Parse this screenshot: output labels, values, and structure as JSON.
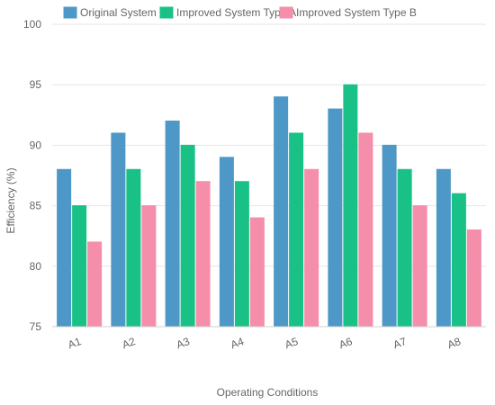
{
  "chart_data": {
    "type": "bar",
    "title": "",
    "xlabel": "Operating Conditions",
    "ylabel": "Efficiency (%)",
    "ylim": [
      75,
      100
    ],
    "yticks": [
      75,
      80,
      85,
      90,
      95,
      100
    ],
    "grid": true,
    "legend_position": "top",
    "categories": [
      "A1",
      "A2",
      "A3",
      "A4",
      "A5",
      "A6",
      "A7",
      "A8"
    ],
    "series": [
      {
        "name": "Original System",
        "color": "#4d98c6",
        "values": [
          88,
          91,
          92,
          89,
          94,
          93,
          90,
          88
        ]
      },
      {
        "name": "Improved System Type A",
        "color": "#19c186",
        "values": [
          85,
          88,
          90,
          87,
          91,
          95,
          88,
          86
        ]
      },
      {
        "name": "Improved System Type B",
        "color": "#f58eaa",
        "values": [
          82,
          85,
          87,
          84,
          88,
          91,
          85,
          83
        ]
      }
    ]
  }
}
